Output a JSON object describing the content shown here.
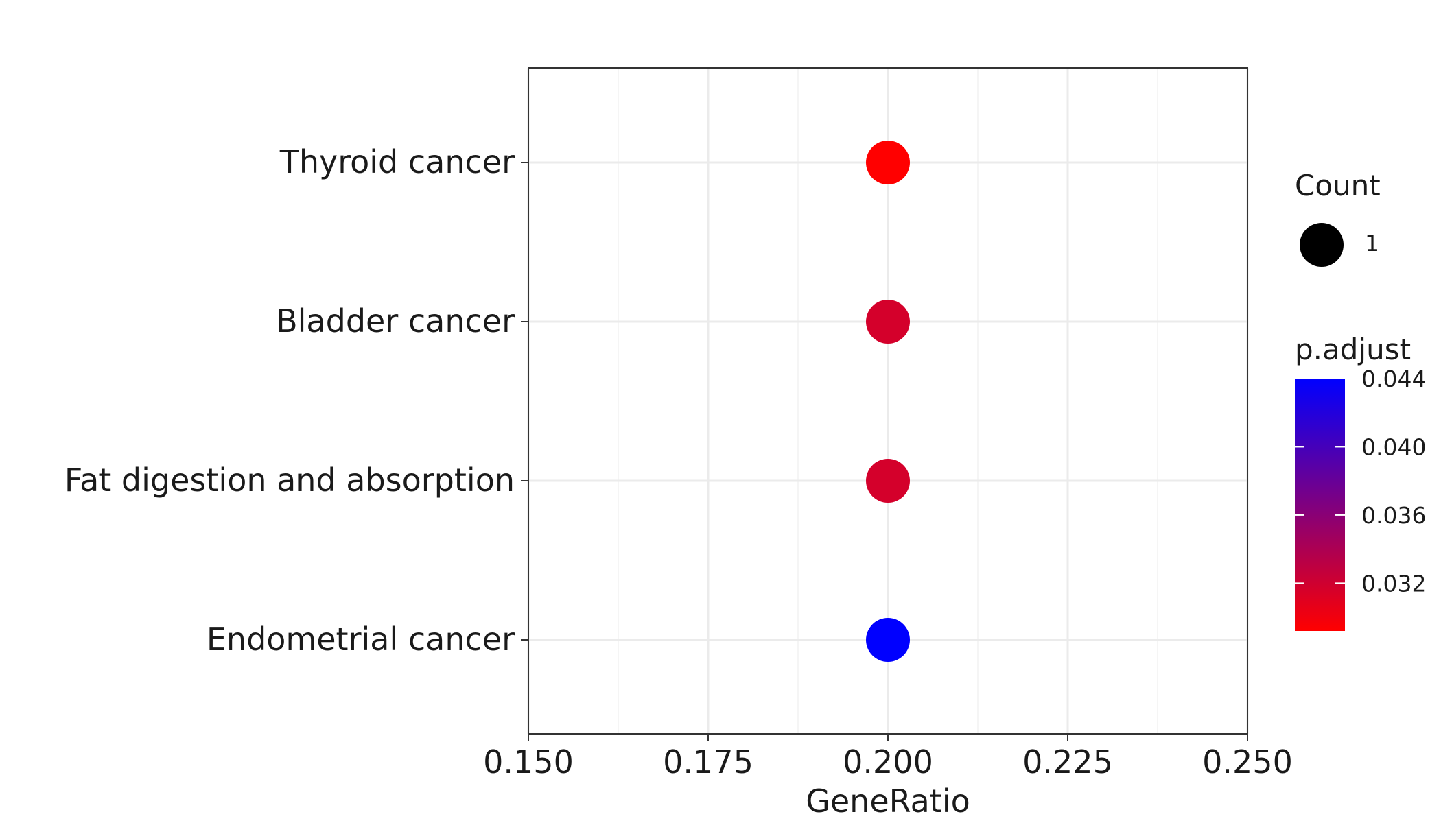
{
  "chart_data": {
    "type": "scatter",
    "title": "",
    "xlabel": "GeneRatio",
    "ylabel": "",
    "xlim": [
      0.15,
      0.25
    ],
    "x_ticks": [
      "0.150",
      "0.175",
      "0.200",
      "0.225",
      "0.250"
    ],
    "grid": true,
    "categories": [
      "Thyroid cancer",
      "Bladder cancer",
      "Fat digestion and absorption",
      "Endometrial cancer"
    ],
    "points": [
      {
        "category": "Thyroid cancer",
        "x": 0.2,
        "count": 1,
        "p_adjust": 0.0292
      },
      {
        "category": "Bladder cancer",
        "x": 0.2,
        "count": 1,
        "p_adjust": 0.0317
      },
      {
        "category": "Fat digestion and absorption",
        "x": 0.2,
        "count": 1,
        "p_adjust": 0.0317
      },
      {
        "category": "Endometrial cancer",
        "x": 0.2,
        "count": 1,
        "p_adjust": 0.044
      }
    ],
    "legend": {
      "placement": "right",
      "size_title": "Count",
      "size_entries": [
        "1"
      ],
      "color_title": "p.adjust",
      "color_ticks": [
        "0.044",
        "0.040",
        "0.036",
        "0.032"
      ],
      "color_tick_values": [
        0.044,
        0.04,
        0.036,
        0.032
      ],
      "color_range": [
        0.0292,
        0.044
      ],
      "color_low": "#ff0000",
      "color_high": "#0000ff"
    }
  }
}
